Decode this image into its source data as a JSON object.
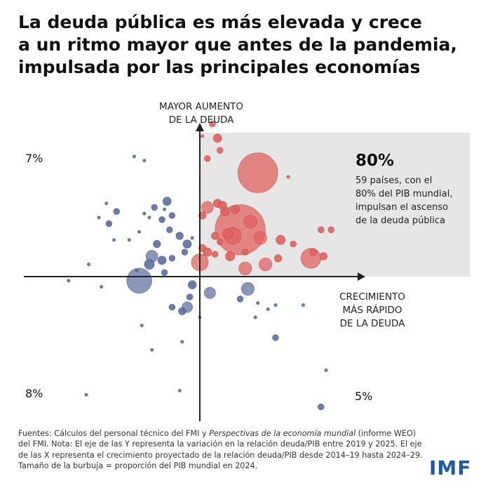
{
  "title": [
    "La deuda pública es más elevada y crece",
    "a un ritmo mayor que antes de la pandemia,",
    "impulsada por las principales economías"
  ],
  "axes": {
    "y_top_label": [
      "MAYOR AUMENTO",
      "DE LA DEUDA"
    ],
    "x_right_label": [
      "CRECIMIENTO",
      "MÁS RÁPIDO",
      "DE LA DEUDA"
    ],
    "y_top_value": "7%",
    "y_bottom_value": "8%",
    "x_right_value": "5%"
  },
  "highlight": {
    "percent": "80%",
    "lines": [
      "59 países, con el",
      "80% del PIB mundial,",
      "impulsan el ascenso",
      "de la deuda pública"
    ],
    "background": "#e6e6e6"
  },
  "colors": {
    "red": "#e0605c",
    "blue": "#5a6ea0",
    "axis": "#222222"
  },
  "source": {
    "prefix": "Fuentes: Cálculos del personal técnico del FMI y ",
    "italic": "Perspectivas de la economía mundial",
    "suffix": " (informe WEO) del FMI. Nota: El eje de las Y representa la variación en la relación deuda/PIB entre 2019 y 2025. El eje de las X representa el crecimiento proyectado de la relación deuda/PIB desde 2014–19 hasta 2024–29. Tamaño de la burbuja = proporción del PIB mundial en 2024."
  },
  "logo": "IMF",
  "chart_data": {
    "type": "scatter",
    "subtype": "bubble",
    "x_axis": "crecimiento proyectado de la relación deuda/PIB",
    "y_axis": "variación en la relación deuda/PIB 2019–2025",
    "size": "proporción del PIB mundial en 2024",
    "series": [
      {
        "name": "59 países, con el 80% del PIB mundial",
        "color": "#e0605c",
        "points": [
          {
            "x": 0.1,
            "y": 6.9,
            "s": 0.0
          },
          {
            "x": 0.7,
            "y": 6.8,
            "s": 0.3
          },
          {
            "x": 0.5,
            "y": 7.5,
            "s": 0.1
          },
          {
            "x": 0.8,
            "y": 6.2,
            "s": 0.1
          },
          {
            "x": 0.3,
            "y": 5.8,
            "s": 0.1
          },
          {
            "x": 2.3,
            "y": 5.1,
            "s": 14.0
          },
          {
            "x": 3.5,
            "y": 4.9,
            "s": 0.0
          },
          {
            "x": 4.8,
            "y": 2.3,
            "s": 0.1
          },
          {
            "x": 0.3,
            "y": 3.4,
            "s": 0.8
          },
          {
            "x": 0.7,
            "y": 3.6,
            "s": 0.3
          },
          {
            "x": 0.9,
            "y": 3.5,
            "s": 0.3
          },
          {
            "x": 1.0,
            "y": 3.2,
            "s": 0.4
          },
          {
            "x": 1.4,
            "y": 3.3,
            "s": 0.3
          },
          {
            "x": 0.1,
            "y": 3.0,
            "s": 0.2
          },
          {
            "x": 1.6,
            "y": 2.3,
            "s": 23.0
          },
          {
            "x": 1.3,
            "y": 2.0,
            "s": 2.0
          },
          {
            "x": 2.4,
            "y": 1.9,
            "s": 1.0
          },
          {
            "x": 3.2,
            "y": 1.8,
            "s": 0.4
          },
          {
            "x": 3.7,
            "y": 1.6,
            "s": 0.1
          },
          {
            "x": 0.6,
            "y": 2.0,
            "s": 0.2
          },
          {
            "x": 2.0,
            "y": 2.7,
            "s": 1.0
          },
          {
            "x": 1.1,
            "y": 2.1,
            "s": 0.5
          },
          {
            "x": 0.8,
            "y": 1.7,
            "s": 0.1
          },
          {
            "x": 0.1,
            "y": 1.4,
            "s": 0.2
          },
          {
            "x": 0.3,
            "y": 1.2,
            "s": 0.3
          },
          {
            "x": 0.6,
            "y": 1.1,
            "s": 0.1
          },
          {
            "x": 1.2,
            "y": 1.0,
            "s": 0.4
          },
          {
            "x": 1.8,
            "y": 1.2,
            "s": 0.1
          },
          {
            "x": 4.9,
            "y": 1.0,
            "s": 0.2
          },
          {
            "x": 4.5,
            "y": 1.2,
            "s": 0.2
          },
          {
            "x": 0.0,
            "y": 0.7,
            "s": 2.0
          },
          {
            "x": 1.8,
            "y": 0.4,
            "s": 1.0
          },
          {
            "x": 2.6,
            "y": 0.6,
            "s": 1.0
          },
          {
            "x": 3.1,
            "y": 0.9,
            "s": 0.2
          },
          {
            "x": 4.4,
            "y": 0.9,
            "s": 3.0
          },
          {
            "x": 5.2,
            "y": 2.3,
            "s": 0.1
          }
        ]
      },
      {
        "name": "",
        "color": "#5a6ea0",
        "points": [
          {
            "x": -2.6,
            "y": 5.9,
            "s": 0.0
          },
          {
            "x": -2.2,
            "y": 5.7,
            "s": 0.0
          },
          {
            "x": -1.3,
            "y": 3.7,
            "s": 0.3
          },
          {
            "x": -1.4,
            "y": 3.3,
            "s": 0.0
          },
          {
            "x": -1.8,
            "y": 3.4,
            "s": 0.1
          },
          {
            "x": -2.2,
            "y": 3.1,
            "s": 0.0
          },
          {
            "x": -1.1,
            "y": 3.0,
            "s": 0.1
          },
          {
            "x": -1.5,
            "y": 2.8,
            "s": 0.1
          },
          {
            "x": -2.0,
            "y": 2.9,
            "s": 0.0
          },
          {
            "x": -3.3,
            "y": 3.2,
            "s": 0.1
          },
          {
            "x": -3.7,
            "y": 3.6,
            "s": 0.0
          },
          {
            "x": -4.0,
            "y": 2.9,
            "s": 0.0
          },
          {
            "x": -3.6,
            "y": 2.6,
            "s": 0.1
          },
          {
            "x": -2.4,
            "y": 2.2,
            "s": 0.0
          },
          {
            "x": -1.2,
            "y": 2.3,
            "s": 0.1
          },
          {
            "x": -0.8,
            "y": 2.0,
            "s": 0.2
          },
          {
            "x": -0.5,
            "y": 1.6,
            "s": 0.3
          },
          {
            "x": -0.3,
            "y": 1.9,
            "s": 0.0
          },
          {
            "x": -1.7,
            "y": 1.6,
            "s": 0.2
          },
          {
            "x": -2.8,
            "y": 1.8,
            "s": 0.0
          },
          {
            "x": -3.4,
            "y": 1.8,
            "s": 0.0
          },
          {
            "x": -1.9,
            "y": 1.0,
            "s": 0.8
          },
          {
            "x": -2.0,
            "y": 0.6,
            "s": 0.5
          },
          {
            "x": -1.5,
            "y": 0.8,
            "s": 0.3
          },
          {
            "x": -1.1,
            "y": 0.9,
            "s": 0.1
          },
          {
            "x": -0.6,
            "y": 1.2,
            "s": 0.1
          },
          {
            "x": -2.5,
            "y": 0.3,
            "s": 0.0
          },
          {
            "x": -4.4,
            "y": 0.6,
            "s": 0.0
          },
          {
            "x": -1.4,
            "y": 0.2,
            "s": 0.1
          },
          {
            "x": -2.4,
            "y": -0.2,
            "s": 5.0
          },
          {
            "x": -5.2,
            "y": -0.2,
            "s": 0.0
          },
          {
            "x": -3.9,
            "y": -0.5,
            "s": 0.0
          },
          {
            "x": -0.3,
            "y": -0.4,
            "s": 0.3
          },
          {
            "x": 0.4,
            "y": -0.8,
            "s": 0.7
          },
          {
            "x": -0.4,
            "y": -1.0,
            "s": 0.1
          },
          {
            "x": -0.5,
            "y": -1.5,
            "s": 0.6
          },
          {
            "x": -0.7,
            "y": -1.7,
            "s": 0.2
          },
          {
            "x": -1.1,
            "y": -1.5,
            "s": 0.1
          },
          {
            "x": 0.0,
            "y": -2.0,
            "s": 0.0
          },
          {
            "x": 1.9,
            "y": -0.6,
            "s": 1.0
          },
          {
            "x": 1.6,
            "y": -1.1,
            "s": 0.1
          },
          {
            "x": 2.3,
            "y": -1.3,
            "s": 0.0
          },
          {
            "x": 2.7,
            "y": -1.6,
            "s": 0.0
          },
          {
            "x": 3.0,
            "y": -1.4,
            "s": 0.0
          },
          {
            "x": 2.2,
            "y": -2.0,
            "s": 0.0
          },
          {
            "x": 3.0,
            "y": -3.0,
            "s": 0.1
          },
          {
            "x": 4.1,
            "y": -1.4,
            "s": 0.0
          },
          {
            "x": -2.3,
            "y": -2.4,
            "s": 0.0
          },
          {
            "x": -1.9,
            "y": -3.6,
            "s": 0.0
          },
          {
            "x": -0.7,
            "y": -3.2,
            "s": 0.0
          },
          {
            "x": -0.8,
            "y": -5.6,
            "s": 0.0
          },
          {
            "x": -4.5,
            "y": -5.8,
            "s": 0.0
          },
          {
            "x": 5.0,
            "y": -4.6,
            "s": 0.0
          },
          {
            "x": 4.8,
            "y": -6.4,
            "s": 0.1
          }
        ]
      }
    ]
  }
}
